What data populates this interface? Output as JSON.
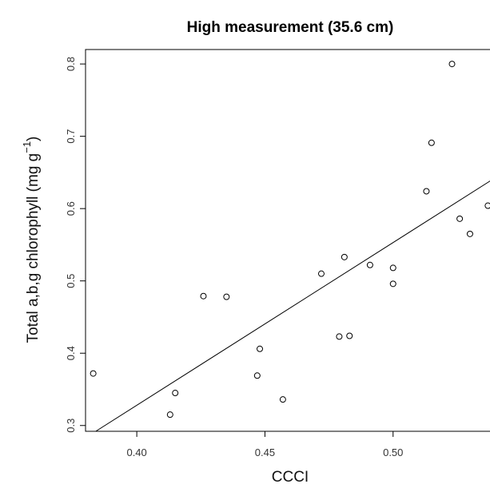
{
  "chart_data": {
    "type": "scatter",
    "title": "High measurement (35.6 cm)",
    "xlabel": "CCCI",
    "ylabel": "Total a,b,g chlorophyll (mg g",
    "ylabel_superscript": "−1",
    "ylabel_close": ")",
    "xlim": [
      0.38,
      0.54
    ],
    "ylim": [
      0.292,
      0.82
    ],
    "x_ticks": [
      0.4,
      0.45,
      0.5
    ],
    "x_tick_labels": [
      "0.40",
      "0.45",
      "0.50"
    ],
    "y_ticks": [
      0.3,
      0.4,
      0.5,
      0.6,
      0.7,
      0.8
    ],
    "y_tick_labels": [
      "0.3",
      "0.4",
      "0.5",
      "0.6",
      "0.7",
      "0.8"
    ],
    "grid": false,
    "points": [
      {
        "x": 0.383,
        "y": 0.372
      },
      {
        "x": 0.413,
        "y": 0.315
      },
      {
        "x": 0.415,
        "y": 0.345
      },
      {
        "x": 0.426,
        "y": 0.479
      },
      {
        "x": 0.435,
        "y": 0.478
      },
      {
        "x": 0.447,
        "y": 0.369
      },
      {
        "x": 0.448,
        "y": 0.406
      },
      {
        "x": 0.457,
        "y": 0.336
      },
      {
        "x": 0.472,
        "y": 0.51
      },
      {
        "x": 0.479,
        "y": 0.423
      },
      {
        "x": 0.481,
        "y": 0.533
      },
      {
        "x": 0.483,
        "y": 0.424
      },
      {
        "x": 0.491,
        "y": 0.522
      },
      {
        "x": 0.5,
        "y": 0.518
      },
      {
        "x": 0.5,
        "y": 0.496
      },
      {
        "x": 0.513,
        "y": 0.624
      },
      {
        "x": 0.515,
        "y": 0.691
      },
      {
        "x": 0.523,
        "y": 0.8
      },
      {
        "x": 0.526,
        "y": 0.586
      },
      {
        "x": 0.53,
        "y": 0.565
      },
      {
        "x": 0.537,
        "y": 0.604
      }
    ],
    "fit_line": {
      "x": [
        0.384,
        0.54
      ],
      "y": [
        0.292,
        0.643
      ]
    }
  }
}
